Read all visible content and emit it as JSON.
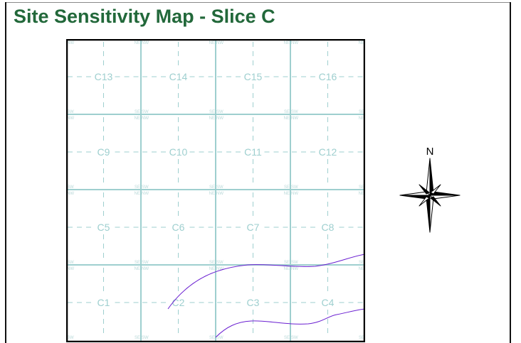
{
  "page": {
    "title": "Site Sensitivity Map - Slice C"
  },
  "map": {
    "sections": [
      {
        "label": "C13",
        "row": 0,
        "col": 0
      },
      {
        "label": "C14",
        "row": 0,
        "col": 1
      },
      {
        "label": "C15",
        "row": 0,
        "col": 2
      },
      {
        "label": "C16",
        "row": 0,
        "col": 3
      },
      {
        "label": "C9",
        "row": 1,
        "col": 0
      },
      {
        "label": "C10",
        "row": 1,
        "col": 1
      },
      {
        "label": "C11",
        "row": 1,
        "col": 2
      },
      {
        "label": "C12",
        "row": 1,
        "col": 3
      },
      {
        "label": "C5",
        "row": 2,
        "col": 0
      },
      {
        "label": "C6",
        "row": 2,
        "col": 1
      },
      {
        "label": "C7",
        "row": 2,
        "col": 2
      },
      {
        "label": "C8",
        "row": 2,
        "col": 3
      },
      {
        "label": "C1",
        "row": 3,
        "col": 0
      },
      {
        "label": "C2",
        "row": 3,
        "col": 1
      },
      {
        "label": "C3",
        "row": 3,
        "col": 2
      },
      {
        "label": "C4",
        "row": 3,
        "col": 3
      }
    ],
    "corner_labels": {
      "ne": "NE",
      "nw": "NW",
      "se": "SE",
      "sw": "SW"
    },
    "colors": {
      "grid_line": "#9ecfcf",
      "section_label": "#9ecfcf",
      "corner_label": "#b9d9d9",
      "boundary": "#6a1fd1",
      "frame": "#000000"
    }
  },
  "compass": {
    "north_label": "N",
    "icon": "compass-rose-icon"
  }
}
